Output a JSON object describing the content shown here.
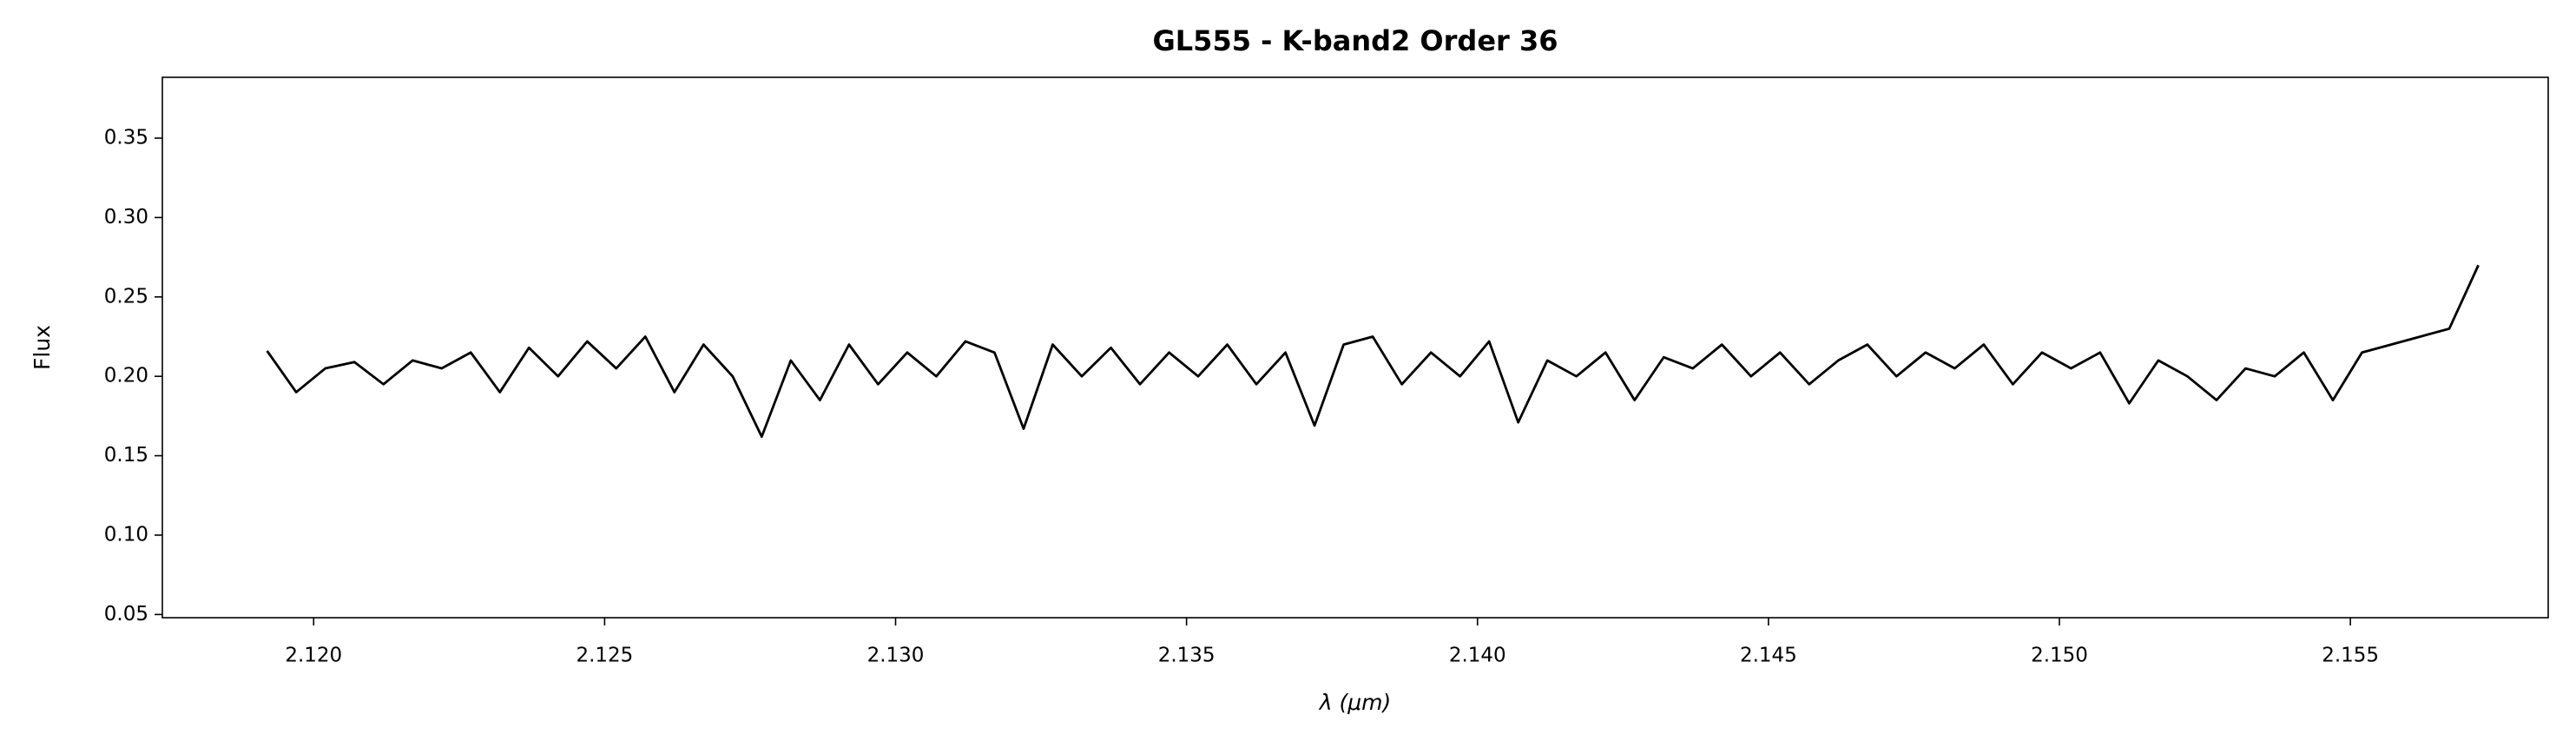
{
  "chart_data": {
    "type": "line",
    "title": "GL555 - K-band2 Order 36",
    "xlabel": "λ (μm)",
    "ylabel": "Flux",
    "x": [
      2.1192,
      2.1197,
      2.1202,
      2.1207,
      2.1212,
      2.1217,
      2.1222,
      2.1227,
      2.1232,
      2.1237,
      2.1242,
      2.1247,
      2.1252,
      2.1257,
      2.1262,
      2.1267,
      2.1272,
      2.1277,
      2.1282,
      2.1287,
      2.1292,
      2.1297,
      2.1302,
      2.1307,
      2.1312,
      2.1317,
      2.1322,
      2.1327,
      2.1332,
      2.1337,
      2.1342,
      2.1347,
      2.1352,
      2.1357,
      2.1362,
      2.1367,
      2.1372,
      2.1377,
      2.1382,
      2.1387,
      2.1392,
      2.1397,
      2.1402,
      2.1407,
      2.1412,
      2.1417,
      2.1422,
      2.1427,
      2.1432,
      2.1437,
      2.1442,
      2.1447,
      2.1452,
      2.1457,
      2.1462,
      2.1467,
      2.1472,
      2.1477,
      2.1482,
      2.1487,
      2.1492,
      2.1497,
      2.1502,
      2.1507,
      2.1512,
      2.1517,
      2.1522,
      2.1527,
      2.1532,
      2.1537,
      2.1542,
      2.1547,
      2.1552,
      2.1557,
      2.1562,
      2.1567,
      2.1572
    ],
    "series": [
      {
        "color": "#000000",
        "values": [
          0.216,
          0.19,
          0.205,
          0.209,
          0.195,
          0.21,
          0.205,
          0.215,
          0.19,
          0.218,
          0.2,
          0.222,
          0.205,
          0.225,
          0.19,
          0.22,
          0.2,
          0.162,
          0.21,
          0.185,
          0.22,
          0.195,
          0.215,
          0.2,
          0.222,
          0.215,
          0.167,
          0.22,
          0.2,
          0.218,
          0.195,
          0.215,
          0.2,
          0.22,
          0.195,
          0.215,
          0.169,
          0.22,
          0.225,
          0.195,
          0.215,
          0.2,
          0.222,
          0.171,
          0.21,
          0.2,
          0.215,
          0.185,
          0.212,
          0.205,
          0.22,
          0.2,
          0.215,
          0.195,
          0.21,
          0.22,
          0.2,
          0.215,
          0.205,
          0.22,
          0.195,
          0.215,
          0.205,
          0.215,
          0.183,
          0.21,
          0.2,
          0.185,
          0.205,
          0.2,
          0.215,
          0.185,
          0.215,
          0.22,
          0.225,
          0.23,
          0.27
        ]
      }
    ],
    "xlim": [
      2.1174,
      2.1584
    ],
    "ylim": [
      0.048,
      0.3883
    ],
    "xticks": [
      {
        "value": 2.12,
        "label": "2.120"
      },
      {
        "value": 2.125,
        "label": "2.125"
      },
      {
        "value": 2.13,
        "label": "2.130"
      },
      {
        "value": 2.135,
        "label": "2.135"
      },
      {
        "value": 2.14,
        "label": "2.140"
      },
      {
        "value": 2.145,
        "label": "2.145"
      },
      {
        "value": 2.15,
        "label": "2.150"
      },
      {
        "value": 2.155,
        "label": "2.155"
      }
    ],
    "yticks": [
      0.05,
      {
        "value": 0.1,
        "label": "0.10"
      },
      0.15,
      {
        "value": 0.2,
        "label": "0.20"
      },
      0.25,
      {
        "value": 0.3,
        "label": "0.30"
      },
      0.35
    ],
    "grid": false
  }
}
